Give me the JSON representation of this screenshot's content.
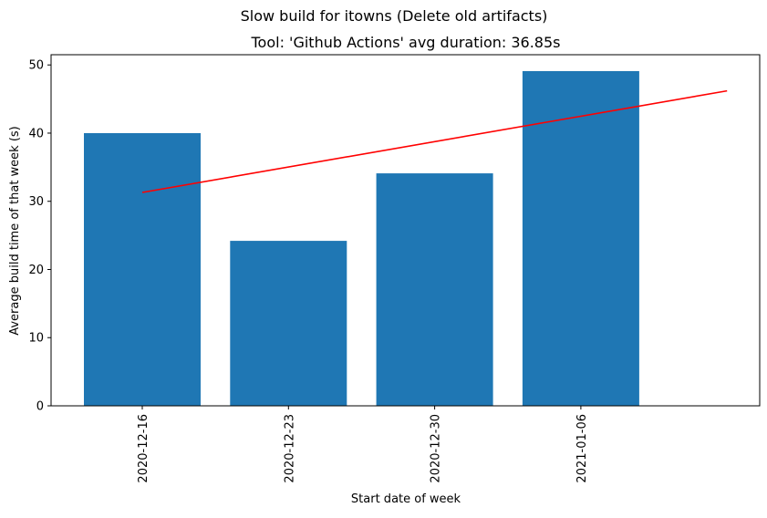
{
  "chart_data": {
    "type": "bar",
    "suptitle": "Slow build for itowns (Delete old artifacts)",
    "title": "Tool: 'Github Actions' avg duration: 36.85s",
    "xlabel": "Start date of week",
    "ylabel": "Average build time of that week (s)",
    "categories": [
      "2020-12-16",
      "2020-12-23",
      "2020-12-30",
      "2021-01-06"
    ],
    "values": [
      40.0,
      24.2,
      34.1,
      49.1
    ],
    "ylim": [
      0,
      51.5
    ],
    "yticks": [
      0,
      10,
      20,
      30,
      40,
      50
    ],
    "trend_line": {
      "x": [
        0,
        4
      ],
      "y": [
        31.3,
        46.2
      ]
    },
    "bar_color": "#1f77b4",
    "trend_color": "#ff0000",
    "grid": false,
    "legend": "none"
  }
}
